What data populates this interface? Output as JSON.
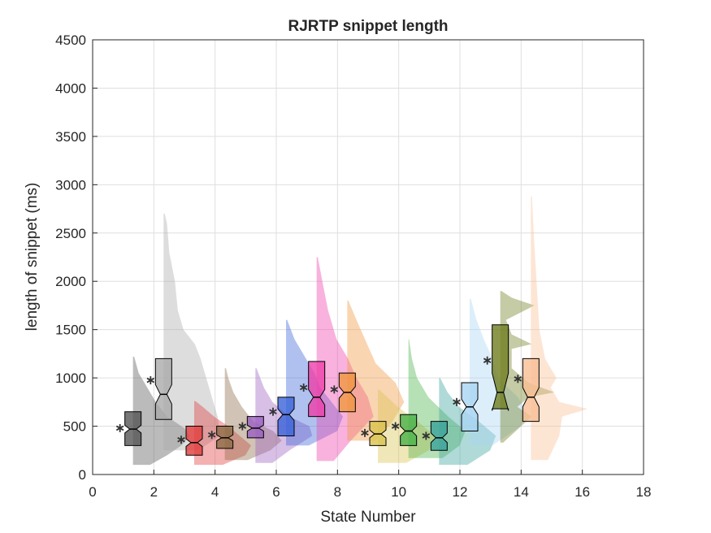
{
  "chart_data": {
    "type": "raincloud",
    "title": "RJRTP snippet length",
    "xlabel": "State Number",
    "ylabel": "length of snippet (ms)",
    "xlim": [
      0,
      18
    ],
    "ylim": [
      0,
      4500
    ],
    "xticks": [
      0,
      2,
      4,
      6,
      8,
      10,
      12,
      14,
      16,
      18
    ],
    "yticks": [
      0,
      500,
      1000,
      1500,
      2000,
      2500,
      3000,
      3500,
      4000,
      4500
    ],
    "grid": true,
    "series": [
      {
        "state": 1,
        "color": "#555555",
        "mean": 480,
        "median": 470,
        "q1": 300,
        "q3": 650,
        "notch": [
          430,
          510
        ],
        "dist_min": 100,
        "dist_max": 1220,
        "density": [
          [
            100,
            0.3
          ],
          [
            200,
            0.6
          ],
          [
            300,
            0.85
          ],
          [
            400,
            1.0
          ],
          [
            480,
            0.9
          ],
          [
            600,
            0.6
          ],
          [
            750,
            0.4
          ],
          [
            900,
            0.25
          ],
          [
            1050,
            0.1
          ],
          [
            1220,
            0.02
          ]
        ]
      },
      {
        "state": 2,
        "color": "#aaaaaa",
        "mean": 975,
        "median": 830,
        "q1": 570,
        "q3": 1200,
        "notch": [
          730,
          930
        ],
        "dist_min": 250,
        "dist_max": 2700,
        "density": [
          [
            250,
            0.6
          ],
          [
            400,
            1.0
          ],
          [
            600,
            0.95
          ],
          [
            800,
            0.85
          ],
          [
            1000,
            0.75
          ],
          [
            1200,
            0.65
          ],
          [
            1350,
            0.55
          ],
          [
            1500,
            0.35
          ],
          [
            1700,
            0.25
          ],
          [
            2000,
            0.2
          ],
          [
            2300,
            0.1
          ],
          [
            2600,
            0.06
          ],
          [
            2700,
            0.02
          ]
        ]
      },
      {
        "state": 3,
        "color": "#e23c3c",
        "mean": 360,
        "median": 330,
        "q1": 200,
        "q3": 500,
        "notch": [
          290,
          370
        ],
        "dist_min": 100,
        "dist_max": 760,
        "density": [
          [
            100,
            0.5
          ],
          [
            200,
            0.9
          ],
          [
            300,
            1.0
          ],
          [
            400,
            0.8
          ],
          [
            500,
            0.6
          ],
          [
            600,
            0.35
          ],
          [
            700,
            0.15
          ],
          [
            760,
            0.02
          ]
        ]
      },
      {
        "state": 4,
        "color": "#8b6a45",
        "mean": 410,
        "median": 380,
        "q1": 270,
        "q3": 500,
        "notch": [
          350,
          410
        ],
        "dist_min": 150,
        "dist_max": 1100,
        "density": [
          [
            150,
            0.4
          ],
          [
            250,
            0.8
          ],
          [
            350,
            1.0
          ],
          [
            450,
            0.85
          ],
          [
            550,
            0.5
          ],
          [
            700,
            0.3
          ],
          [
            850,
            0.15
          ],
          [
            1000,
            0.06
          ],
          [
            1100,
            0.02
          ]
        ]
      },
      {
        "state": 5,
        "color": "#9b5fc0",
        "mean": 500,
        "median": 480,
        "q1": 380,
        "q3": 600,
        "notch": [
          450,
          510
        ],
        "dist_min": 120,
        "dist_max": 1100,
        "density": [
          [
            120,
            0.3
          ],
          [
            250,
            0.6
          ],
          [
            400,
            1.0
          ],
          [
            500,
            0.95
          ],
          [
            600,
            0.6
          ],
          [
            750,
            0.3
          ],
          [
            900,
            0.15
          ],
          [
            1100,
            0.02
          ]
        ]
      },
      {
        "state": 6,
        "color": "#3a63d8",
        "mean": 650,
        "median": 620,
        "q1": 400,
        "q3": 800,
        "notch": [
          560,
          680
        ],
        "dist_min": 300,
        "dist_max": 1600,
        "density": [
          [
            300,
            0.4
          ],
          [
            450,
            0.9
          ],
          [
            600,
            1.0
          ],
          [
            750,
            0.8
          ],
          [
            900,
            0.6
          ],
          [
            1050,
            0.5
          ],
          [
            1200,
            0.35
          ],
          [
            1400,
            0.15
          ],
          [
            1600,
            0.02
          ]
        ]
      },
      {
        "state": 7,
        "color": "#ee3fa9",
        "mean": 900,
        "median": 800,
        "q1": 600,
        "q3": 1170,
        "notch": [
          720,
          880
        ],
        "dist_min": 140,
        "dist_max": 2250,
        "density": [
          [
            140,
            0.3
          ],
          [
            350,
            0.6
          ],
          [
            600,
            1.0
          ],
          [
            800,
            0.9
          ],
          [
            1000,
            0.7
          ],
          [
            1200,
            0.55
          ],
          [
            1400,
            0.35
          ],
          [
            1700,
            0.2
          ],
          [
            2000,
            0.1
          ],
          [
            2250,
            0.02
          ]
        ]
      },
      {
        "state": 8,
        "color": "#f0963f",
        "mean": 880,
        "median": 850,
        "q1": 650,
        "q3": 1050,
        "notch": [
          790,
          910
        ],
        "dist_min": 350,
        "dist_max": 1800,
        "density": [
          [
            350,
            0.5
          ],
          [
            550,
            0.8
          ],
          [
            750,
            1.0
          ],
          [
            950,
            0.85
          ],
          [
            1150,
            0.5
          ],
          [
            1350,
            0.35
          ],
          [
            1550,
            0.2
          ],
          [
            1800,
            0.02
          ]
        ]
      },
      {
        "state": 9,
        "color": "#d9c34d",
        "mean": 430,
        "median": 420,
        "q1": 300,
        "q3": 550,
        "notch": [
          380,
          460
        ],
        "dist_min": 120,
        "dist_max": 880,
        "density": [
          [
            120,
            0.5
          ],
          [
            250,
            0.9
          ],
          [
            400,
            1.0
          ],
          [
            550,
            0.7
          ],
          [
            700,
            0.35
          ],
          [
            880,
            0.02
          ]
        ]
      },
      {
        "state": 10,
        "color": "#49b149",
        "mean": 500,
        "median": 450,
        "q1": 300,
        "q3": 620,
        "notch": [
          400,
          500
        ],
        "dist_min": 170,
        "dist_max": 1400,
        "density": [
          [
            170,
            0.6
          ],
          [
            300,
            0.9
          ],
          [
            450,
            1.0
          ],
          [
            600,
            0.7
          ],
          [
            800,
            0.35
          ],
          [
            1000,
            0.15
          ],
          [
            1200,
            0.06
          ],
          [
            1400,
            0.01
          ]
        ]
      },
      {
        "state": 11,
        "color": "#3aa39a",
        "mean": 400,
        "median": 380,
        "q1": 250,
        "q3": 550,
        "notch": [
          330,
          430
        ],
        "dist_min": 100,
        "dist_max": 1000,
        "density": [
          [
            100,
            0.5
          ],
          [
            250,
            0.9
          ],
          [
            400,
            1.0
          ],
          [
            550,
            0.7
          ],
          [
            700,
            0.35
          ],
          [
            850,
            0.15
          ],
          [
            1000,
            0.02
          ]
        ]
      },
      {
        "state": 12,
        "color": "#a9d4f4",
        "mean": 750,
        "median": 700,
        "q1": 450,
        "q3": 950,
        "notch": [
          620,
          780
        ],
        "dist_min": 300,
        "dist_max": 1820,
        "density": [
          [
            300,
            0.4
          ],
          [
            500,
            0.9
          ],
          [
            650,
            1.0
          ],
          [
            800,
            0.85
          ],
          [
            1000,
            0.5
          ],
          [
            1200,
            0.4
          ],
          [
            1400,
            0.25
          ],
          [
            1600,
            0.12
          ],
          [
            1820,
            0.02
          ]
        ]
      },
      {
        "state": 13,
        "color": "#6f7d1e",
        "mean": 1180,
        "median": 850,
        "q1": 680,
        "q3": 1550,
        "notch": [
          660,
          1050
        ],
        "dist_min": 330,
        "dist_max": 1900,
        "density": [
          [
            330,
            0.05
          ],
          [
            600,
            0.55
          ],
          [
            700,
            0.3
          ],
          [
            800,
            0.5
          ],
          [
            850,
            0.95
          ],
          [
            950,
            0.5
          ],
          [
            1100,
            0.2
          ],
          [
            1300,
            0.2
          ],
          [
            1350,
            0.55
          ],
          [
            1450,
            0.2
          ],
          [
            1600,
            0.1
          ],
          [
            1750,
            0.6
          ],
          [
            1830,
            0.2
          ],
          [
            1900,
            0.02
          ]
        ]
      },
      {
        "state": 14,
        "color": "#f9be94",
        "mean": 990,
        "median": 800,
        "q1": 550,
        "q3": 1200,
        "notch": [
          700,
          900
        ],
        "dist_min": 150,
        "dist_max": 2880,
        "density": [
          [
            150,
            0.3
          ],
          [
            400,
            0.5
          ],
          [
            600,
            0.55
          ],
          [
            680,
            1.0
          ],
          [
            750,
            0.5
          ],
          [
            900,
            0.35
          ],
          [
            1000,
            0.45
          ],
          [
            1200,
            0.25
          ],
          [
            1500,
            0.15
          ],
          [
            2000,
            0.1
          ],
          [
            2500,
            0.05
          ],
          [
            2880,
            0.02
          ]
        ]
      }
    ]
  }
}
